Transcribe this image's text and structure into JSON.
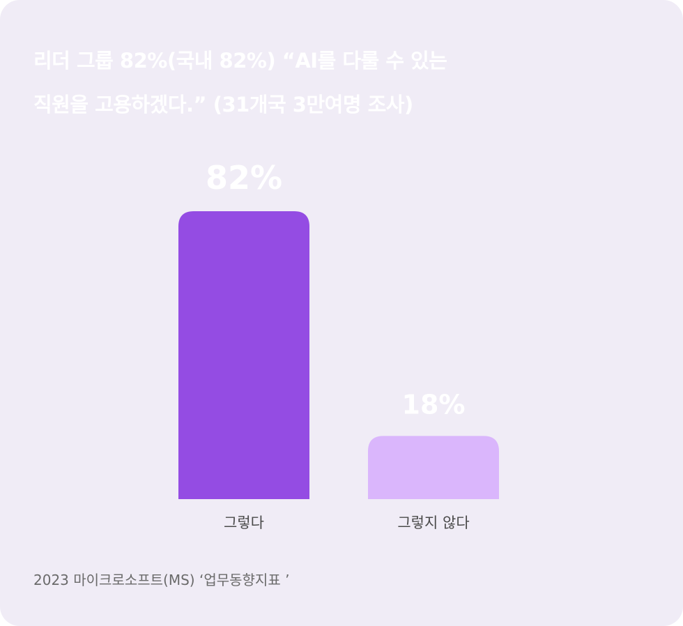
{
  "title_lines": [
    "리더 그룹 82%(국내 82%) “AI를 다룰 수 있는",
    "직원을 고용하겠다.” (31개국 3만여명 조사)"
  ],
  "source": "2023 마이크로소프트(MS) ‘업무동향지표 ’",
  "colors": {
    "background": "#f0ecf6",
    "bar_primary": "#944ce3",
    "bar_secondary": "#dab6fc",
    "text_white": "#ffffff"
  },
  "chart_data": {
    "type": "bar",
    "categories": [
      "그렇다",
      "그렇지 않다"
    ],
    "values": [
      82,
      18
    ],
    "value_labels": [
      "82%",
      "18%"
    ],
    "ylim": [
      0,
      82
    ],
    "grid": false,
    "legend": "none"
  }
}
